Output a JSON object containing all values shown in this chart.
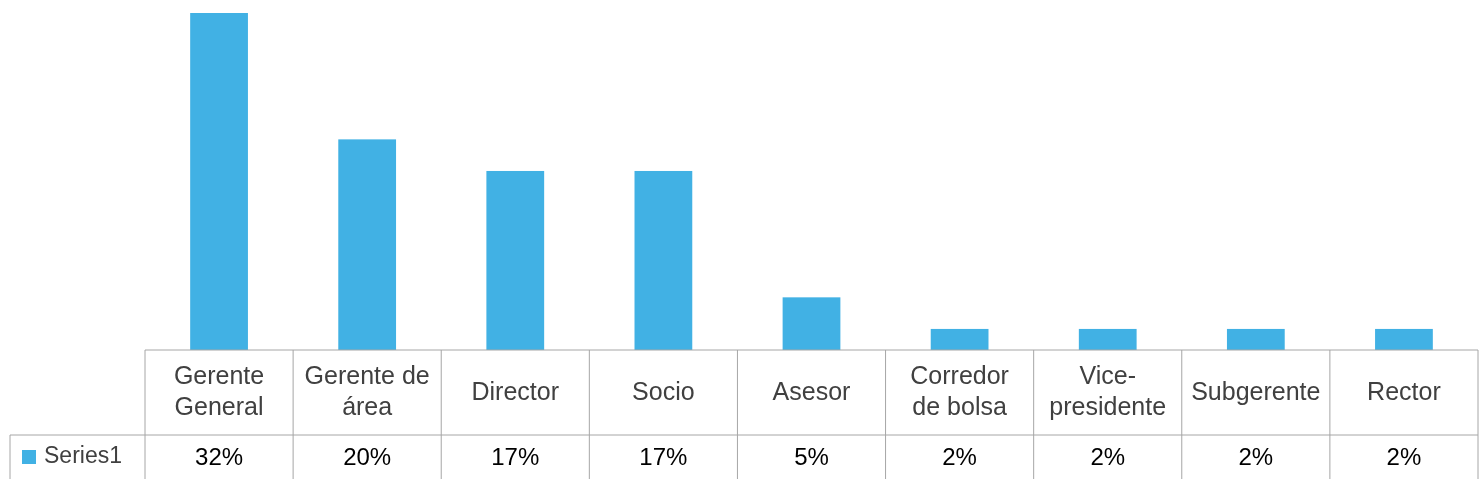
{
  "chart_data": {
    "type": "bar",
    "categories": [
      "Gerente General",
      "Gerente de área",
      "Director",
      "Socio",
      "Asesor",
      "Corredor de bolsa",
      "Vice-presidente",
      "Subgerente",
      "Rector"
    ],
    "series": [
      {
        "name": "Series1",
        "color": "#41b1e4",
        "values": [
          32,
          20,
          17,
          17,
          5,
          2,
          2,
          2,
          2
        ],
        "value_labels": [
          "32%",
          "20%",
          "17%",
          "17%",
          "5%",
          "2%",
          "2%",
          "2%",
          "2%"
        ]
      }
    ],
    "legend": "bottom",
    "grid": false
  }
}
